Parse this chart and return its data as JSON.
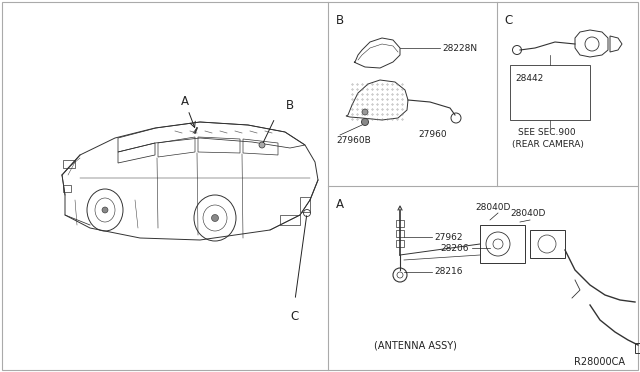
{
  "bg_color": "#ffffff",
  "border_color": "#555555",
  "text_color": "#222222",
  "diagram_ref": "R28000CA",
  "labels": {
    "A_car": "A",
    "B_car": "B",
    "C_car": "C",
    "sect_B": "B",
    "sect_C": "C",
    "sect_A": "A",
    "part_28228N": "28228N",
    "part_27960B": "27960B",
    "part_27960": "27960",
    "part_28442": "28442",
    "see_sec": "SEE SEC.900",
    "rear_cam": "〈REAR CAMERA〉",
    "rear_cam2": "(REAR CAMERA)",
    "part_28040D_1": "28040D",
    "part_28040D_2": "28040D",
    "part_27962": "27962",
    "part_28206": "28206",
    "part_28216": "28216",
    "antenna_assy": "(ANTENNA ASSY)"
  },
  "font_size_labels": 6.5,
  "font_size_section": 8.5,
  "font_size_ref": 7.0
}
